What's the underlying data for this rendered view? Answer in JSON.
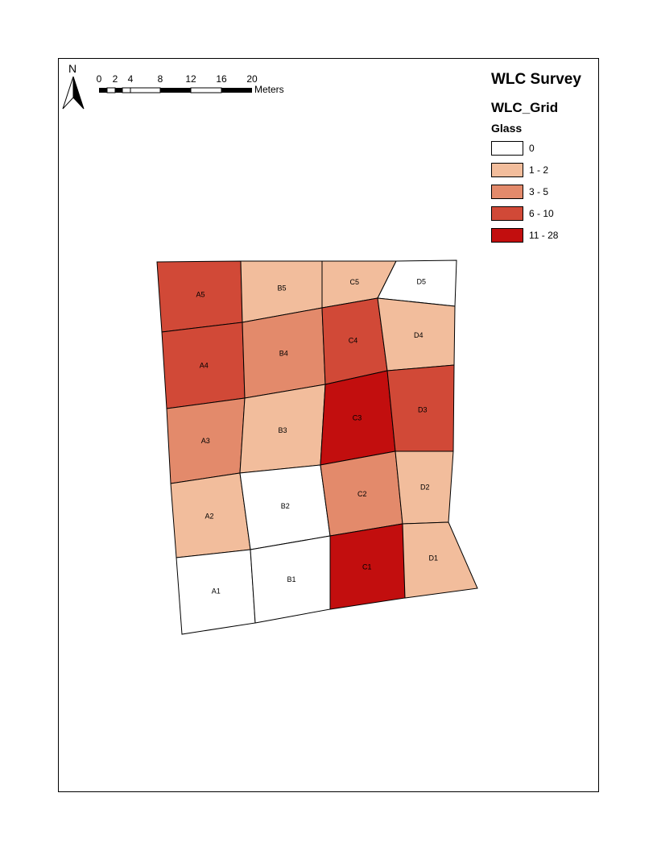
{
  "title": "WLC Survey",
  "layer": "WLC_Grid",
  "field": "Glass",
  "north_arrow": {
    "icon": "north-arrow-icon",
    "label": "N"
  },
  "scale_bar": {
    "ticks": [
      "0",
      "2",
      "4",
      "8",
      "12",
      "16",
      "20"
    ],
    "units": "Meters"
  },
  "legend": [
    {
      "label": "0",
      "color": "#ffffff"
    },
    {
      "label": "1 - 2",
      "color": "#f2bd9c"
    },
    {
      "label": "3 - 5",
      "color": "#e38a6b"
    },
    {
      "label": "6 - 10",
      "color": "#d14937"
    },
    {
      "label": "11 - 28",
      "color": "#c20e0e"
    }
  ],
  "cells": [
    {
      "id": "A5",
      "class": 3
    },
    {
      "id": "B5",
      "class": 1
    },
    {
      "id": "C5",
      "class": 1
    },
    {
      "id": "D5",
      "class": 0
    },
    {
      "id": "A4",
      "class": 3
    },
    {
      "id": "B4",
      "class": 2
    },
    {
      "id": "C4",
      "class": 3
    },
    {
      "id": "D4",
      "class": 1
    },
    {
      "id": "A3",
      "class": 2
    },
    {
      "id": "B3",
      "class": 1
    },
    {
      "id": "C3",
      "class": 4
    },
    {
      "id": "D3",
      "class": 3
    },
    {
      "id": "A2",
      "class": 1
    },
    {
      "id": "B2",
      "class": 0
    },
    {
      "id": "C2",
      "class": 2
    },
    {
      "id": "D2",
      "class": 1
    },
    {
      "id": "A1",
      "class": 0
    },
    {
      "id": "B1",
      "class": 0
    },
    {
      "id": "C1",
      "class": 4
    },
    {
      "id": "D1",
      "class": 1
    }
  ]
}
